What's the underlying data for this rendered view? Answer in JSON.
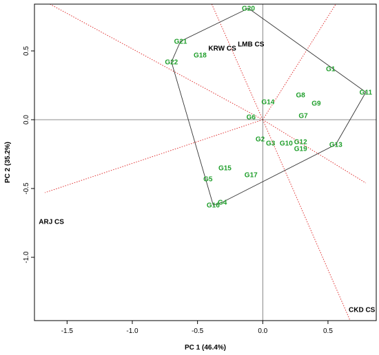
{
  "chart_data": {
    "type": "scatter",
    "subtype": "GGE biplot (which-won-where)",
    "title": "",
    "xlabel": "PC 1 (46.4%)",
    "ylabel": "PC 2 (35.2%)",
    "xlim": [
      -1.75,
      0.87
    ],
    "ylim": [
      -1.46,
      0.84
    ],
    "x_ticks": [
      {
        "value": -1.5,
        "label": "-1.5"
      },
      {
        "value": -1.0,
        "label": "-1.0"
      },
      {
        "value": -0.5,
        "label": "-0.5"
      },
      {
        "value": 0.0,
        "label": "0.0"
      },
      {
        "value": 0.5,
        "label": "0.5"
      }
    ],
    "y_ticks": [
      {
        "value": -1.0,
        "label": "-1.0"
      },
      {
        "value": -0.5,
        "label": "-0.5"
      },
      {
        "value": 0.0,
        "label": "0.0"
      },
      {
        "value": 0.5,
        "label": "0.5"
      }
    ],
    "grid": false,
    "genotype_color": "#1e9e2a",
    "sector_line_color": "#e03030",
    "hull_color": "#333333",
    "genotypes": [
      {
        "label": "G1",
        "x": 0.52,
        "y": 0.37
      },
      {
        "label": "G2",
        "x": -0.02,
        "y": -0.14
      },
      {
        "label": "G3",
        "x": 0.06,
        "y": -0.17
      },
      {
        "label": "G4",
        "x": -0.31,
        "y": -0.6
      },
      {
        "label": "G5",
        "x": -0.42,
        "y": -0.43
      },
      {
        "label": "G6",
        "x": -0.09,
        "y": 0.02
      },
      {
        "label": "G7",
        "x": 0.31,
        "y": 0.03
      },
      {
        "label": "G8",
        "x": 0.29,
        "y": 0.18
      },
      {
        "label": "G9",
        "x": 0.41,
        "y": 0.12
      },
      {
        "label": "G10",
        "x": 0.18,
        "y": -0.17
      },
      {
        "label": "G11",
        "x": 0.79,
        "y": 0.2
      },
      {
        "label": "G12",
        "x": 0.29,
        "y": -0.16
      },
      {
        "label": "G13",
        "x": 0.56,
        "y": -0.18
      },
      {
        "label": "G14",
        "x": 0.04,
        "y": 0.13
      },
      {
        "label": "G15",
        "x": -0.29,
        "y": -0.35
      },
      {
        "label": "G16",
        "x": -0.38,
        "y": -0.62
      },
      {
        "label": "G17",
        "x": -0.09,
        "y": -0.4
      },
      {
        "label": "G18",
        "x": -0.48,
        "y": 0.47
      },
      {
        "label": "G19",
        "x": 0.29,
        "y": -0.21
      },
      {
        "label": "G20",
        "x": -0.11,
        "y": 0.81
      },
      {
        "label": "G21",
        "x": -0.63,
        "y": 0.57
      },
      {
        "label": "G22",
        "x": -0.7,
        "y": 0.42
      }
    ],
    "environments": [
      {
        "label": "ARJ CS",
        "x": -1.62,
        "y": -0.74
      },
      {
        "label": "CKD CS",
        "x": 0.76,
        "y": -1.38
      },
      {
        "label": "KRW CS",
        "x": -0.31,
        "y": 0.52
      },
      {
        "label": "LMB CS",
        "x": -0.09,
        "y": 0.55
      }
    ],
    "polygon": [
      "G20",
      "G11",
      "G13",
      "G4",
      "G16",
      "G22",
      "G21"
    ],
    "sector_rays": [
      {
        "to_x": -1.67,
        "to_y": -0.53
      },
      {
        "to_x": -1.67,
        "to_y": 0.86
      },
      {
        "to_x": 0.79,
        "to_y": -0.46
      },
      {
        "to_x": 0.67,
        "to_y": -1.46
      },
      {
        "to_x": -0.4,
        "to_y": 0.86
      },
      {
        "to_x": 0.6,
        "to_y": 0.9
      }
    ]
  }
}
